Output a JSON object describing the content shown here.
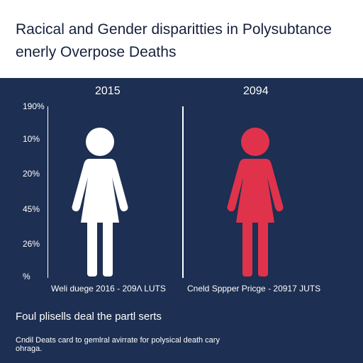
{
  "title": "Racical and Gender disparitties in Polysubtance enerly Overpose Deaths",
  "chart_data": {
    "type": "pictograph",
    "title": "Racical and Gender disparitties in Polysubtance enerly Overpose Deaths",
    "y_ticks": [
      "190%",
      "10%",
      "20%",
      "45%",
      "26%",
      "%"
    ],
    "categories": [
      "2015",
      "2094"
    ],
    "figures": [
      {
        "label": "2015",
        "color": "#ffffff",
        "caption": "Weli duege 2016 - 209Λ LUTS"
      },
      {
        "label": "2094",
        "color": "#e0334b",
        "caption": "Cneld Sppper Pricge - 20917 JUTS"
      }
    ],
    "grid": false,
    "legend": "none"
  },
  "footer": {
    "title": "Foul plisells deal the partl serts",
    "note": "Cndil Deats card to gemlral avirrate for polysical death cary ohraga."
  },
  "colors": {
    "background": "#1d2f52",
    "header": "#ffffff",
    "accent": "#e0334b"
  }
}
